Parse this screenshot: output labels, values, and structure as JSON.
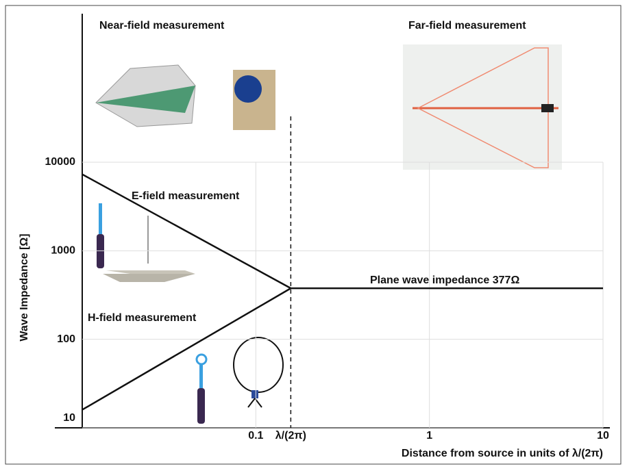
{
  "chart_data": {
    "type": "line",
    "near_field_title": "Near-field measurement",
    "far_field_title": "Far-field measurement",
    "x_label": "Distance from source in units of λ/(2π)",
    "y_label": "Wave Impedance [Ω]",
    "x_log": true,
    "y_log": true,
    "grid": true,
    "xlim": [
      0.01,
      10
    ],
    "ylim": [
      10,
      10000
    ],
    "xticks": [
      0.1,
      {
        "value": 0.159,
        "label": "λ/(2π)"
      },
      1,
      10
    ],
    "yticks": [
      10,
      100,
      1000,
      10000
    ],
    "series": [
      {
        "name": "E-field measurement",
        "color": "#111111",
        "x": [
          0.01,
          0.159
        ],
        "values": [
          7300,
          377
        ]
      },
      {
        "name": "H-field measurement",
        "color": "#111111",
        "x": [
          0.01,
          0.159
        ],
        "values": [
          16,
          377
        ]
      },
      {
        "name": "Plane wave impedance 377Ω",
        "color": "#111111",
        "x": [
          0.159,
          10
        ],
        "values": [
          377,
          377
        ]
      }
    ]
  }
}
